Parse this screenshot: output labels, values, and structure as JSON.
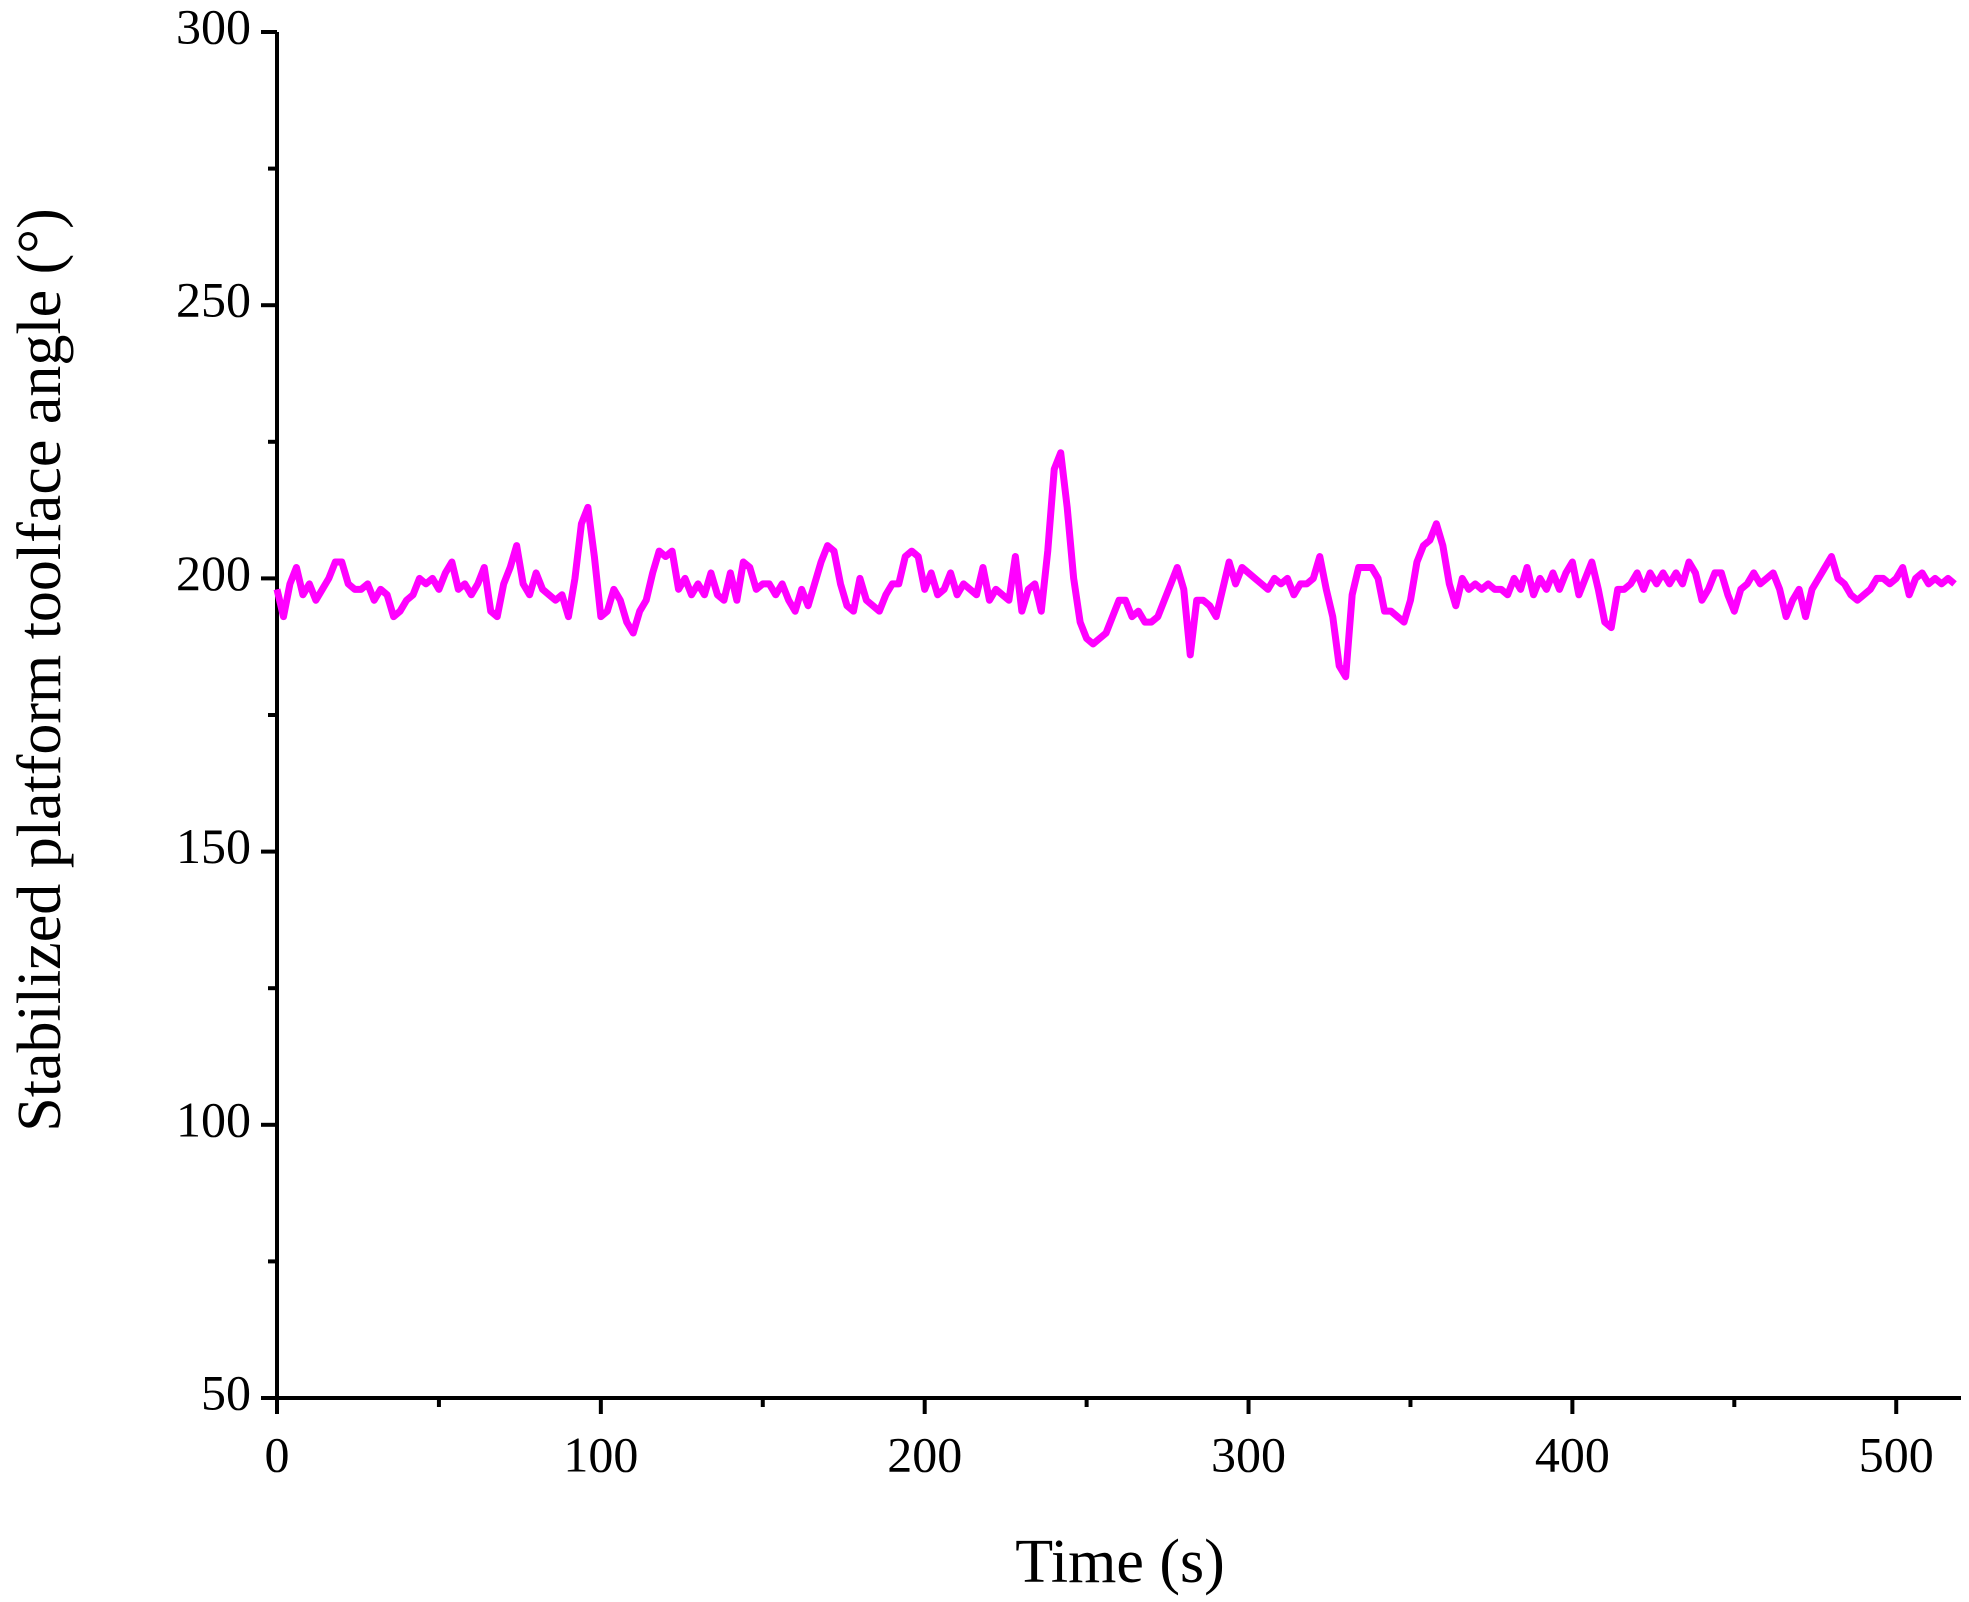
{
  "chart_data": {
    "type": "line",
    "x_label": "Time (s)",
    "y_label": "Stabilized platform toolface angle (°)",
    "xlim": [
      0,
      520
    ],
    "xticks": [
      0,
      100,
      200,
      300,
      400,
      500
    ],
    "xminorticks": [
      50,
      150,
      250,
      350,
      450
    ],
    "ylim": [
      50,
      300
    ],
    "yticks": [
      50,
      100,
      150,
      200,
      250,
      300
    ],
    "yminorticks": [
      75,
      125,
      175,
      225,
      275
    ],
    "grid": false,
    "series": [
      {
        "color": "#ff00ff",
        "x": [
          0,
          2,
          4,
          6,
          8,
          10,
          12,
          14,
          16,
          18,
          20,
          22,
          24,
          26,
          28,
          30,
          32,
          34,
          36,
          38,
          40,
          42,
          44,
          46,
          48,
          50,
          52,
          54,
          56,
          58,
          60,
          62,
          64,
          66,
          68,
          70,
          72,
          74,
          76,
          78,
          80,
          82,
          84,
          86,
          88,
          90,
          92,
          94,
          96,
          98,
          100,
          102,
          104,
          106,
          108,
          110,
          112,
          114,
          116,
          118,
          120,
          122,
          124,
          126,
          128,
          130,
          132,
          134,
          136,
          138,
          140,
          142,
          144,
          146,
          148,
          150,
          152,
          154,
          156,
          158,
          160,
          162,
          164,
          166,
          168,
          170,
          172,
          174,
          176,
          178,
          180,
          182,
          184,
          186,
          188,
          190,
          192,
          194,
          196,
          198,
          200,
          202,
          204,
          206,
          208,
          210,
          212,
          214,
          216,
          218,
          220,
          222,
          224,
          226,
          228,
          230,
          232,
          234,
          236,
          238,
          240,
          242,
          244,
          246,
          248,
          250,
          252,
          254,
          256,
          258,
          260,
          262,
          264,
          266,
          268,
          270,
          272,
          274,
          276,
          278,
          280,
          282,
          284,
          286,
          288,
          290,
          292,
          294,
          296,
          298,
          300,
          302,
          304,
          306,
          308,
          310,
          312,
          314,
          316,
          318,
          320,
          322,
          324,
          326,
          328,
          330,
          332,
          334,
          336,
          338,
          340,
          342,
          344,
          346,
          348,
          350,
          352,
          354,
          356,
          358,
          360,
          362,
          364,
          366,
          368,
          370,
          372,
          374,
          376,
          378,
          380,
          382,
          384,
          386,
          388,
          390,
          392,
          394,
          396,
          398,
          400,
          402,
          404,
          406,
          408,
          410,
          412,
          414,
          416,
          418,
          420,
          422,
          424,
          426,
          428,
          430,
          432,
          434,
          436,
          438,
          440,
          442,
          444,
          446,
          448,
          450,
          452,
          454,
          456,
          458,
          460,
          462,
          464,
          466,
          468,
          470,
          472,
          474,
          476,
          478,
          480,
          482,
          484,
          486,
          488,
          490,
          492,
          494,
          496,
          498,
          500,
          502,
          504,
          506,
          508,
          510,
          512,
          514,
          516,
          518
        ],
        "values": [
          198,
          193,
          199,
          202,
          197,
          199,
          196,
          198,
          200,
          203,
          203,
          199,
          198,
          198,
          199,
          196,
          198,
          197,
          193,
          194,
          196,
          197,
          200,
          199,
          200,
          198,
          201,
          203,
          198,
          199,
          197,
          199,
          202,
          194,
          193,
          199,
          202,
          206,
          199,
          197,
          201,
          198,
          197,
          196,
          197,
          193,
          200,
          210,
          213,
          204,
          193,
          194,
          198,
          196,
          192,
          190,
          194,
          196,
          201,
          205,
          204,
          205,
          198,
          200,
          197,
          199,
          197,
          201,
          197,
          196,
          201,
          196,
          203,
          202,
          198,
          199,
          199,
          197,
          199,
          196,
          194,
          198,
          195,
          199,
          203,
          206,
          205,
          199,
          195,
          194,
          200,
          196,
          195,
          194,
          197,
          199,
          199,
          204,
          205,
          204,
          198,
          201,
          197,
          198,
          201,
          197,
          199,
          198,
          197,
          202,
          196,
          198,
          197,
          196,
          204,
          194,
          198,
          199,
          194,
          205,
          220,
          223,
          213,
          200,
          192,
          189,
          188,
          189,
          190,
          193,
          196,
          196,
          193,
          194,
          192,
          192,
          193,
          196,
          199,
          202,
          198,
          186,
          196,
          196,
          195,
          193,
          198,
          203,
          199,
          202,
          201,
          200,
          199,
          198,
          200,
          199,
          200,
          197,
          199,
          199,
          200,
          204,
          198,
          193,
          184,
          182,
          197,
          202,
          202,
          202,
          200,
          194,
          194,
          193,
          192,
          196,
          203,
          206,
          207,
          210,
          206,
          199,
          195,
          200,
          198,
          199,
          198,
          199,
          198,
          198,
          197,
          200,
          198,
          202,
          197,
          200,
          198,
          201,
          198,
          201,
          203,
          197,
          200,
          203,
          198,
          192,
          191,
          198,
          198,
          199,
          201,
          198,
          201,
          199,
          201,
          199,
          201,
          199,
          203,
          201,
          196,
          198,
          201,
          201,
          197,
          194,
          198,
          199,
          201,
          199,
          200,
          201,
          198,
          193,
          196,
          198,
          193,
          198,
          200,
          202,
          204,
          200,
          199,
          197,
          196,
          197,
          198,
          200,
          200,
          199,
          200,
          202,
          197,
          200,
          201,
          199,
          200,
          199,
          200,
          199
        ]
      }
    ]
  }
}
